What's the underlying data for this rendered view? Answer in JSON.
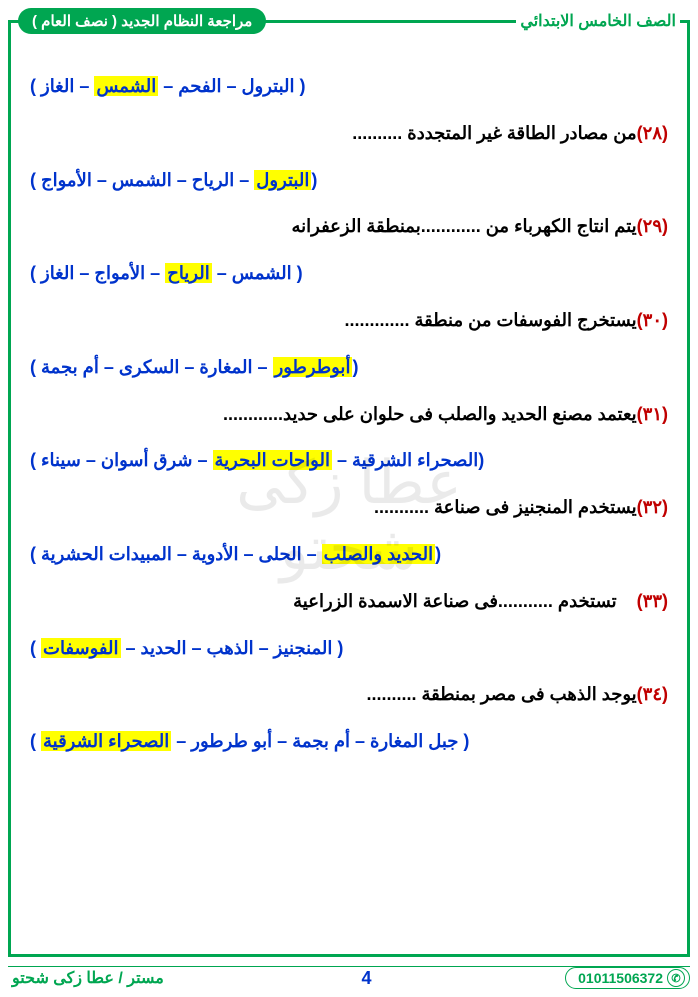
{
  "header": {
    "grade": "الصف الخامس الابتدائي",
    "badge": "مراجعة النظام الجديد ( نصف العام )"
  },
  "items": [
    {
      "type": "options",
      "parts": [
        {
          "t": "( البترول – الفحم – ",
          "h": false
        },
        {
          "t": "الشمس",
          "h": true
        },
        {
          "t": " – الغاز )",
          "h": false
        }
      ]
    },
    {
      "type": "question",
      "num": "(٢٨)",
      "text": "من مصادر الطاقة غير المتجددة .........."
    },
    {
      "type": "options",
      "parts": [
        {
          "t": "(",
          "h": false
        },
        {
          "t": "البترول",
          "h": true
        },
        {
          "t": " – الرياح – الشمس – الأمواج )",
          "h": false
        }
      ]
    },
    {
      "type": "question",
      "num": "(٢٩)",
      "text": "يتم انتاج الكهرباء من ............بمنطقة الزعفرانه"
    },
    {
      "type": "options",
      "parts": [
        {
          "t": "( الشمس – ",
          "h": false
        },
        {
          "t": "الرياح",
          "h": true
        },
        {
          "t": " – الأمواج – الغاز )",
          "h": false
        }
      ]
    },
    {
      "type": "question",
      "num": "(٣٠)",
      "text": "يستخرج الفوسفات من منطقة ............."
    },
    {
      "type": "options",
      "parts": [
        {
          "t": "(",
          "h": false
        },
        {
          "t": "أبوطرطور",
          "h": true
        },
        {
          "t": " – المغارة – السكرى – أم بجمة )",
          "h": false
        }
      ]
    },
    {
      "type": "question",
      "num": "(٣١)",
      "text": "يعتمد مصنع الحديد والصلب فى حلوان على حديد............"
    },
    {
      "type": "options",
      "parts": [
        {
          "t": "(الصحراء الشرقية – ",
          "h": false
        },
        {
          "t": "الواحات البحرية",
          "h": true
        },
        {
          "t": " – شرق أسوان – سيناء )",
          "h": false
        }
      ]
    },
    {
      "type": "question",
      "num": "(٣٢)",
      "text": "يستخدم المنجنيز فى صناعة ..........."
    },
    {
      "type": "options",
      "parts": [
        {
          "t": "(",
          "h": false
        },
        {
          "t": "الحديد والصلب",
          "h": true
        },
        {
          "t": " – الحلى – الأدوية – المبيدات الحشرية )",
          "h": false
        }
      ]
    },
    {
      "type": "question",
      "num": "(٣٣)",
      "text": "    تستخدم ...........فى صناعة الاسمدة الزراعية"
    },
    {
      "type": "options",
      "parts": [
        {
          "t": "( المنجنيز – الذهب – الحديد – ",
          "h": false
        },
        {
          "t": "الفوسفات",
          "h": true
        },
        {
          "t": " )",
          "h": false
        }
      ]
    },
    {
      "type": "question",
      "num": "(٣٤)",
      "text": "يوجد الذهب فى مصر بمنطقة .........."
    },
    {
      "type": "options",
      "parts": [
        {
          "t": "( جبل المغارة – أم بجمة – أبو طرطور – ",
          "h": false
        },
        {
          "t": "الصحراء الشرقية",
          "h": true
        },
        {
          "t": " )",
          "h": false
        }
      ]
    }
  ],
  "watermark": "عطا زكى شحتو",
  "footer": {
    "phone": "01011506372",
    "page": "4",
    "author": "مستر / عطا زكى شحتو"
  }
}
